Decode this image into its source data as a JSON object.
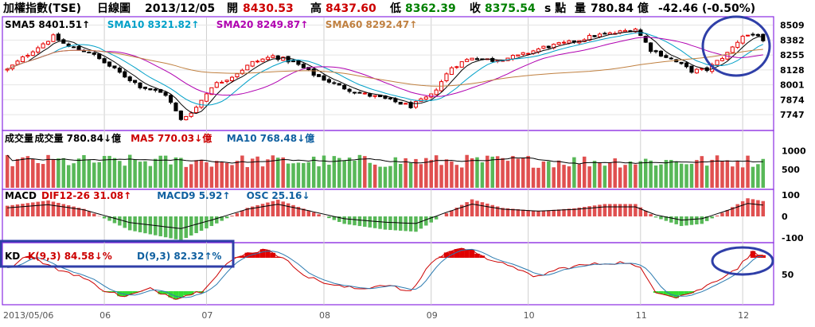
{
  "header": {
    "title": "加權指數(TSE)",
    "period": "日線圖",
    "date": "2013/12/05",
    "open_label": "開",
    "open": "8430.53",
    "high_label": "高",
    "high": "8437.60",
    "low_label": "低",
    "low": "8362.39",
    "close_label": "收",
    "close": "8375.54",
    "unit_label": "s 點",
    "volume_label": "量",
    "volume": "780.84 億",
    "change": "-42.46 (-0.50%)"
  },
  "colors": {
    "up": "#e60000",
    "down": "#009900",
    "border": "#8a2be2",
    "sma5": "#000000",
    "sma10": "#00a0c8",
    "sma20": "#b000b0",
    "sma60": "#c08040",
    "highlight": "#2f3fa8"
  },
  "panels": {
    "price": {
      "legend": [
        {
          "name": "SMA5",
          "value": "8401.51",
          "dir": "up",
          "color": "#000000"
        },
        {
          "name": "SMA10",
          "value": "8321.82",
          "dir": "up",
          "color": "#00a0c8"
        },
        {
          "name": "SMA20",
          "value": "8249.87",
          "dir": "up",
          "color": "#b000b0"
        },
        {
          "name": "SMA60",
          "value": "8292.47",
          "dir": "up",
          "color": "#c08040"
        }
      ],
      "ticks": [
        "8509",
        "8382",
        "8255",
        "8128",
        "8001",
        "7874",
        "7747"
      ]
    },
    "volume": {
      "legend": [
        {
          "name": "成交量",
          "value": "780.84",
          "dir": "down",
          "unit": "億",
          "color": "#000000"
        },
        {
          "name": "MA5",
          "value": "770.03",
          "dir": "down",
          "unit": "億",
          "color": "#cc0000"
        },
        {
          "name": "MA10",
          "value": "768.48",
          "dir": "down",
          "unit": "億",
          "color": "#1060a0"
        }
      ],
      "title": "成交量",
      "ticks": [
        "1000",
        "500"
      ]
    },
    "macd": {
      "title": "MACD",
      "legend": [
        {
          "name": "DIF12-26",
          "value": "31.08",
          "dir": "up",
          "color": "#cc0000"
        },
        {
          "name": "MACD9",
          "value": "5.92",
          "dir": "up",
          "color": "#1060a0"
        },
        {
          "name": "OSC",
          "value": "25.16",
          "dir": "down",
          "color": "#1060a0"
        }
      ],
      "ticks": [
        "100",
        "0",
        "-100"
      ]
    },
    "kd": {
      "title": "KD",
      "legend": [
        {
          "name": "K(9,3)",
          "value": "84.58",
          "dir": "down",
          "unit": "%",
          "color": "#cc0000"
        },
        {
          "name": "D(9,3)",
          "value": "82.32",
          "dir": "up",
          "unit": "%",
          "color": "#1060a0"
        }
      ],
      "ticks": [
        "50"
      ]
    }
  },
  "x_axis": {
    "labels": [
      {
        "text": "2013/05/06",
        "day": 0
      },
      {
        "text": "06",
        "day": 19
      },
      {
        "text": "07",
        "day": 39
      },
      {
        "text": "08",
        "day": 62
      },
      {
        "text": "09",
        "day": 83
      },
      {
        "text": "10",
        "day": 102
      },
      {
        "text": "11",
        "day": 124
      },
      {
        "text": "12",
        "day": 144
      }
    ]
  },
  "chart_data": {
    "type": "candlestick",
    "title": "加權指數(TSE) 日線圖",
    "xlabel": "",
    "ylabel": "",
    "price_range": [
      7640,
      8560
    ],
    "volume_range": [
      0,
      1250
    ],
    "macd_range": [
      -140,
      140
    ],
    "kd_range": [
      0,
      100
    ],
    "close_path": [
      {
        "d": 0,
        "v": 8130
      },
      {
        "d": 5,
        "v": 8295
      },
      {
        "d": 9,
        "v": 8410
      },
      {
        "d": 12,
        "v": 8325
      },
      {
        "d": 16,
        "v": 8280
      },
      {
        "d": 20,
        "v": 8160
      },
      {
        "d": 26,
        "v": 7990
      },
      {
        "d": 31,
        "v": 7920
      },
      {
        "d": 34,
        "v": 7700
      },
      {
        "d": 37,
        "v": 7810
      },
      {
        "d": 40,
        "v": 7990
      },
      {
        "d": 44,
        "v": 8075
      },
      {
        "d": 48,
        "v": 8190
      },
      {
        "d": 52,
        "v": 8245
      },
      {
        "d": 56,
        "v": 8195
      },
      {
        "d": 60,
        "v": 8090
      },
      {
        "d": 65,
        "v": 7990
      },
      {
        "d": 69,
        "v": 7930
      },
      {
        "d": 74,
        "v": 7880
      },
      {
        "d": 79,
        "v": 7820
      },
      {
        "d": 83,
        "v": 7910
      },
      {
        "d": 87,
        "v": 8150
      },
      {
        "d": 91,
        "v": 8235
      },
      {
        "d": 95,
        "v": 8210
      },
      {
        "d": 100,
        "v": 8245
      },
      {
        "d": 105,
        "v": 8320
      },
      {
        "d": 110,
        "v": 8360
      },
      {
        "d": 115,
        "v": 8420
      },
      {
        "d": 119,
        "v": 8440
      },
      {
        "d": 123,
        "v": 8480
      },
      {
        "d": 126,
        "v": 8300
      },
      {
        "d": 130,
        "v": 8220
      },
      {
        "d": 134,
        "v": 8120
      },
      {
        "d": 137,
        "v": 8130
      },
      {
        "d": 141,
        "v": 8270
      },
      {
        "d": 144,
        "v": 8420
      },
      {
        "d": 147,
        "v": 8430
      },
      {
        "d": 148,
        "v": 8376
      }
    ],
    "macd_path": [
      {
        "d": 0,
        "v": 50
      },
      {
        "d": 8,
        "v": 75
      },
      {
        "d": 15,
        "v": 35
      },
      {
        "d": 24,
        "v": -65
      },
      {
        "d": 34,
        "v": -112
      },
      {
        "d": 40,
        "v": -45
      },
      {
        "d": 47,
        "v": 40
      },
      {
        "d": 53,
        "v": 78
      },
      {
        "d": 59,
        "v": 28
      },
      {
        "d": 66,
        "v": -35
      },
      {
        "d": 74,
        "v": -62
      },
      {
        "d": 80,
        "v": -72
      },
      {
        "d": 86,
        "v": 15
      },
      {
        "d": 91,
        "v": 80
      },
      {
        "d": 97,
        "v": 40
      },
      {
        "d": 104,
        "v": 25
      },
      {
        "d": 111,
        "v": 38
      },
      {
        "d": 117,
        "v": 58
      },
      {
        "d": 123,
        "v": 58
      },
      {
        "d": 127,
        "v": -5
      },
      {
        "d": 132,
        "v": -45
      },
      {
        "d": 136,
        "v": -35
      },
      {
        "d": 141,
        "v": 30
      },
      {
        "d": 145,
        "v": 85
      },
      {
        "d": 148,
        "v": 72
      }
    ],
    "kd_path": [
      {
        "d": 0,
        "v": 60
      },
      {
        "d": 4,
        "v": 85
      },
      {
        "d": 9,
        "v": 62
      },
      {
        "d": 14,
        "v": 48
      },
      {
        "d": 19,
        "v": 22
      },
      {
        "d": 23,
        "v": 10
      },
      {
        "d": 28,
        "v": 24
      },
      {
        "d": 33,
        "v": 8
      },
      {
        "d": 38,
        "v": 20
      },
      {
        "d": 43,
        "v": 70
      },
      {
        "d": 47,
        "v": 88
      },
      {
        "d": 51,
        "v": 96
      },
      {
        "d": 55,
        "v": 72
      },
      {
        "d": 59,
        "v": 45
      },
      {
        "d": 64,
        "v": 30
      },
      {
        "d": 69,
        "v": 24
      },
      {
        "d": 74,
        "v": 32
      },
      {
        "d": 79,
        "v": 18
      },
      {
        "d": 83,
        "v": 72
      },
      {
        "d": 87,
        "v": 94
      },
      {
        "d": 91,
        "v": 96
      },
      {
        "d": 95,
        "v": 72
      },
      {
        "d": 99,
        "v": 66
      },
      {
        "d": 103,
        "v": 44
      },
      {
        "d": 108,
        "v": 60
      },
      {
        "d": 112,
        "v": 66
      },
      {
        "d": 117,
        "v": 70
      },
      {
        "d": 121,
        "v": 72
      },
      {
        "d": 124,
        "v": 60
      },
      {
        "d": 127,
        "v": 20
      },
      {
        "d": 131,
        "v": 10
      },
      {
        "d": 135,
        "v": 20
      },
      {
        "d": 139,
        "v": 40
      },
      {
        "d": 143,
        "v": 62
      },
      {
        "d": 146,
        "v": 90
      },
      {
        "d": 148,
        "v": 85
      }
    ],
    "volume_base": 720,
    "last": {
      "open": 8430.53,
      "high": 8437.6,
      "low": 8362.39,
      "close": 8375.54,
      "volume": 780.84
    }
  }
}
